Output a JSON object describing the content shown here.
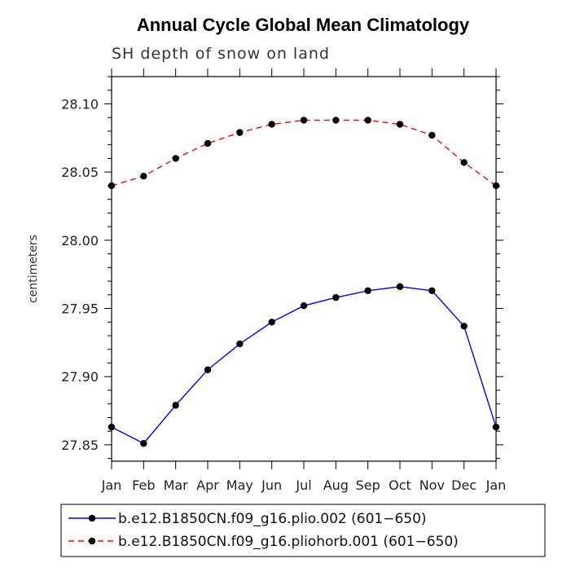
{
  "chart_data": {
    "type": "line",
    "title": "Annual Cycle Global Mean Climatology",
    "subtitle": "SH depth of snow on land",
    "xlabel": "",
    "ylabel": "centimeters",
    "categories": [
      "Jan",
      "Feb",
      "Mar",
      "Apr",
      "May",
      "Jun",
      "Jul",
      "Aug",
      "Sep",
      "Oct",
      "Nov",
      "Dec",
      "Jan"
    ],
    "ylim": [
      27.838,
      28.12
    ],
    "yticks": [
      27.85,
      27.9,
      27.95,
      28.0,
      28.05,
      28.1
    ],
    "ytick_labels": [
      "27.85",
      "27.90",
      "27.95",
      "28.00",
      "28.05",
      "28.10"
    ],
    "series": [
      {
        "name": "b.e12.B1850CN.f09_g16.plio.002 (601−650)",
        "color": "#0000ff",
        "dash": "solid",
        "values": [
          27.863,
          27.851,
          27.879,
          27.905,
          27.924,
          27.94,
          27.952,
          27.958,
          27.963,
          27.966,
          27.963,
          27.937,
          27.863
        ]
      },
      {
        "name": "b.e12.B1850CN.f09_g16.pliohorb.001 (601−650)",
        "color": "#ff0000",
        "dash": "dashed",
        "values": [
          28.04,
          28.047,
          28.06,
          28.071,
          28.079,
          28.085,
          28.088,
          28.088,
          28.088,
          28.085,
          28.077,
          28.057,
          28.04
        ]
      }
    ],
    "legend_position": "bottom"
  }
}
